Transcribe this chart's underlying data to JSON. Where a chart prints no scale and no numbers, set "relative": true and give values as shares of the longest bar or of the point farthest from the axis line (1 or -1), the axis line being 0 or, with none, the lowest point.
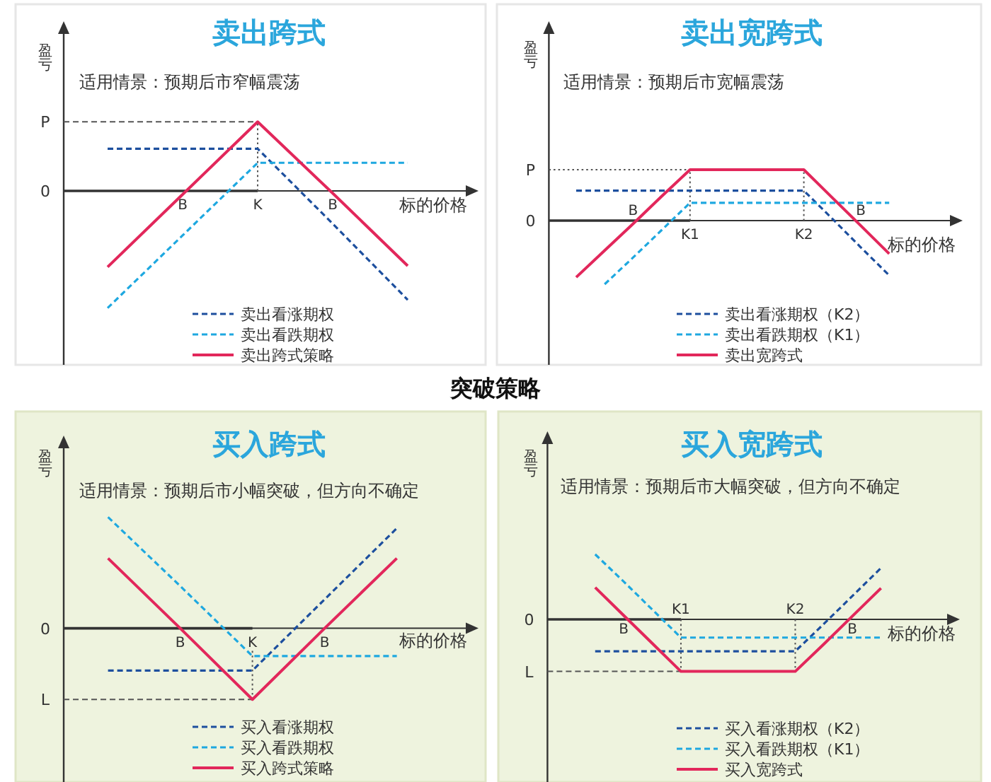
{
  "chart_data": [
    {
      "type": "line",
      "title": "卖出跨式",
      "subtitle": "适用情景：预期后市窄幅震荡",
      "xlabel": "标的价格",
      "ylabel": "盈亏",
      "relative": true,
      "categories": [
        null,
        "B",
        "K",
        "B",
        null
      ],
      "series": [
        {
          "name": "卖出看涨期权",
          "color": "#1d4f9e",
          "line_style": "dashed",
          "values": [
            0.36,
            0.36,
            0.36,
            -0.28,
            -0.93
          ]
        },
        {
          "name": "卖出看跌期权",
          "color": "#1ea8e0",
          "line_style": "dashed",
          "values": [
            -1,
            -0.38,
            0.24,
            0.24,
            0.24
          ]
        },
        {
          "name": "卖出跨式策略",
          "color": "#e2275b",
          "line_style": "solid",
          "values": [
            -0.65,
            -0.03,
            0.59,
            -0.02,
            -0.64
          ]
        }
      ],
      "ref_lines": [
        {
          "axis": "y",
          "value": 0,
          "label": "0",
          "color": "#333333",
          "line_style": "solid"
        },
        {
          "axis": "y",
          "value": 0.59,
          "label": "P",
          "color": "#555555",
          "line_style": "dashed"
        },
        {
          "axis": "x",
          "value": "K",
          "color": "#555555",
          "line_style": "dotted"
        }
      ],
      "legend": "bottom"
    },
    {
      "type": "line",
      "title": "卖出宽跨式",
      "subtitle": "适用情景：预期后市宽幅震荡",
      "xlabel": "标的价格",
      "ylabel": "盈亏",
      "relative": true,
      "categories": [
        null,
        null,
        "B",
        null,
        "K1",
        null,
        null,
        null,
        "K2",
        null,
        "B",
        null
      ],
      "series": [
        {
          "name": "卖出看涨期权（K2）",
          "color": "#1d4f9e",
          "line_style": "dashed",
          "values": [
            0.47,
            0.47,
            0.47,
            0.47,
            0.47,
            0.47,
            0.47,
            0.47,
            0.47,
            0.03,
            -0.42,
            -0.86
          ]
        },
        {
          "name": "卖出看跌期权（K1）",
          "color": "#1ea8e0",
          "line_style": "dashed",
          "values": [
            null,
            -1,
            -0.58,
            -0.15,
            0.28,
            0.28,
            0.28,
            0.28,
            0.28,
            0.28,
            0.28,
            0.28
          ]
        },
        {
          "name": "卖出宽跨式",
          "color": "#e2275b",
          "line_style": "solid",
          "values": [
            -0.89,
            -0.47,
            -0.05,
            0.38,
            0.8,
            0.8,
            0.8,
            0.8,
            0.8,
            0.36,
            -0.08,
            -0.52
          ]
        }
      ],
      "ref_lines": [
        {
          "axis": "y",
          "value": 0,
          "label": "0",
          "color": "#333333",
          "line_style": "solid"
        },
        {
          "axis": "y",
          "value": 0.8,
          "label": "P",
          "color": "#555555",
          "line_style": "dotted"
        },
        {
          "axis": "x",
          "value": "K1",
          "color": "#555555",
          "line_style": "dotted"
        },
        {
          "axis": "x",
          "value": "K2",
          "color": "#555555",
          "line_style": "dotted"
        }
      ],
      "legend": "bottom"
    },
    {
      "type": "other",
      "title": "突破策略"
    },
    {
      "type": "line",
      "title": "买入跨式",
      "subtitle": "适用情景：预期后市小幅突破，但方向不确定",
      "xlabel": "标的价格",
      "ylabel": "盈亏",
      "relative": true,
      "categories": [
        null,
        "B",
        "K",
        "B",
        null
      ],
      "series": [
        {
          "name": "买入看涨期权",
          "color": "#1d4f9e",
          "line_style": "dashed",
          "values": [
            -0.38,
            -0.38,
            -0.38,
            0.26,
            0.9
          ]
        },
        {
          "name": "买入看跌期权",
          "color": "#1ea8e0",
          "line_style": "dashed",
          "values": [
            1,
            0.38,
            -0.25,
            -0.25,
            -0.25
          ]
        },
        {
          "name": "买入跨式策略",
          "color": "#e2275b",
          "line_style": "solid",
          "values": [
            0.63,
            0,
            -0.64,
            0,
            0.63
          ]
        }
      ],
      "ref_lines": [
        {
          "axis": "y",
          "value": 0,
          "label": "0",
          "color": "#333333",
          "line_style": "solid"
        },
        {
          "axis": "y",
          "value": -0.64,
          "label": "L",
          "color": "#555555",
          "line_style": "dashed"
        },
        {
          "axis": "x",
          "value": "K",
          "color": "#555555",
          "line_style": "dotted"
        }
      ],
      "legend": "bottom"
    },
    {
      "type": "line",
      "title": "买入宽跨式",
      "subtitle": "适用情景：预期后市大幅突破，但方向不确定",
      "xlabel": "标的价格",
      "ylabel": "盈亏",
      "relative": true,
      "categories": [
        null,
        "B",
        null,
        "K1",
        null,
        null,
        null,
        "K2",
        null,
        "B",
        null
      ],
      "series": [
        {
          "name": "买入看涨期权（K2）",
          "color": "#1d4f9e",
          "line_style": "dashed",
          "values": [
            -0.49,
            -0.49,
            -0.49,
            -0.49,
            -0.49,
            -0.49,
            -0.49,
            -0.49,
            -0.07,
            0.36,
            0.79
          ]
        },
        {
          "name": "买入看跌期权（K1）",
          "color": "#1ea8e0",
          "line_style": "dashed",
          "values": [
            1,
            0.58,
            0.15,
            -0.28,
            -0.28,
            -0.28,
            -0.28,
            -0.28,
            -0.28,
            -0.28,
            -0.28
          ]
        },
        {
          "name": "买入宽跨式",
          "color": "#e2275b",
          "line_style": "solid",
          "values": [
            0.49,
            0.06,
            -0.37,
            -0.8,
            -0.8,
            -0.8,
            -0.8,
            -0.8,
            -0.38,
            0.05,
            0.48
          ]
        }
      ],
      "ref_lines": [
        {
          "axis": "y",
          "value": 0,
          "label": "0",
          "color": "#333333",
          "line_style": "solid"
        },
        {
          "axis": "y",
          "value": -0.8,
          "label": "L",
          "color": "#555555",
          "line_style": "dashed"
        },
        {
          "axis": "x",
          "value": "K1",
          "color": "#555555",
          "line_style": "dotted"
        },
        {
          "axis": "x",
          "value": "K2",
          "color": "#555555",
          "line_style": "dotted"
        }
      ],
      "legend": "bottom"
    }
  ]
}
